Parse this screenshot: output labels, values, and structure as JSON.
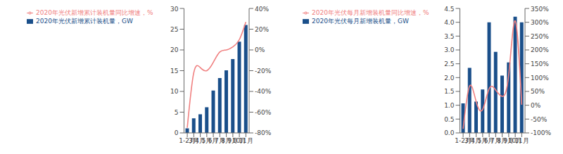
{
  "chart_data": [
    {
      "type": "bar",
      "categories": [
        "1-2月",
        "3月",
        "4月",
        "5月",
        "6月",
        "7月",
        "8月",
        "9月",
        "10月",
        "11月"
      ],
      "series": [
        {
          "name": "2020年光伏新增累计装机量，GW",
          "type": "bar",
          "color": "#1a4f8a",
          "values": [
            1.1,
            3.5,
            4.5,
            6.2,
            10.2,
            13.2,
            15.1,
            17.8,
            22.0,
            26.0
          ]
        },
        {
          "name": "2020年光伏新增累计装机量同比增速，%",
          "type": "line",
          "axis": "y2",
          "color": "#f08080",
          "values": [
            -0.75,
            -0.22,
            -0.17,
            -0.2,
            -0.12,
            -0.02,
            0.0,
            0.03,
            0.1,
            0.27
          ]
        }
      ],
      "ylim": [
        0,
        30
      ],
      "yticks": [
        0,
        5,
        10,
        15,
        20,
        25,
        30
      ],
      "y2lim": [
        -0.8,
        0.4
      ],
      "y2ticks": [
        {
          "value": -0.8,
          "label": "-80%"
        },
        {
          "value": -0.6,
          "label": "-60%"
        },
        {
          "value": -0.4,
          "label": "-40%"
        },
        {
          "value": -0.2,
          "label": "-20%"
        },
        {
          "value": 0.0,
          "label": "0%"
        },
        {
          "value": 0.2,
          "label": "20%"
        },
        {
          "value": 0.4,
          "label": "40%"
        }
      ],
      "legend": "upper left",
      "grid": false
    },
    {
      "type": "bar",
      "categories": [
        "1-2月",
        "3月",
        "4月",
        "5月",
        "6月",
        "7月",
        "8月",
        "9月",
        "10月",
        "11月"
      ],
      "series": [
        {
          "name": "2020年光伏每月新增装机量，GW",
          "type": "bar",
          "color": "#1a4f8a",
          "values": [
            1.07,
            2.35,
            1.13,
            1.57,
            4.0,
            2.93,
            2.07,
            2.55,
            4.2,
            4.0
          ]
        },
        {
          "name": "2020年光伏每月新增装机量同比增速，%",
          "type": "line",
          "axis": "y2",
          "color": "#f08080",
          "values": [
            -0.85,
            0.7,
            0.13,
            -0.15,
            0.6,
            0.55,
            0.32,
            1.1,
            3.05,
            0.02
          ]
        }
      ],
      "ylim": [
        0,
        4.5
      ],
      "yticks": [
        {
          "value": 0,
          "label": "0.0"
        },
        0.5,
        {
          "value": 1.0,
          "label": "1.0"
        },
        1.5,
        {
          "value": 2.0,
          "label": "2.0"
        },
        2.5,
        {
          "value": 3.0,
          "label": "3.0"
        },
        3.5,
        {
          "value": 4.0,
          "label": "4.0"
        },
        4.5
      ],
      "y2lim": [
        -1.0,
        3.5
      ],
      "y2ticks": [
        {
          "value": -1.0,
          "label": "-100%"
        },
        {
          "value": -0.5,
          "label": "-50%"
        },
        {
          "value": 0.0,
          "label": "0%"
        },
        {
          "value": 0.5,
          "label": "50%"
        },
        {
          "value": 1.0,
          "label": "100%"
        },
        {
          "value": 1.5,
          "label": "150%"
        },
        {
          "value": 2.0,
          "label": "200%"
        },
        {
          "value": 2.5,
          "label": "250%"
        },
        {
          "value": 3.0,
          "label": "300%"
        },
        {
          "value": 3.5,
          "label": "350%"
        }
      ],
      "legend": "upper left",
      "grid": false
    }
  ]
}
